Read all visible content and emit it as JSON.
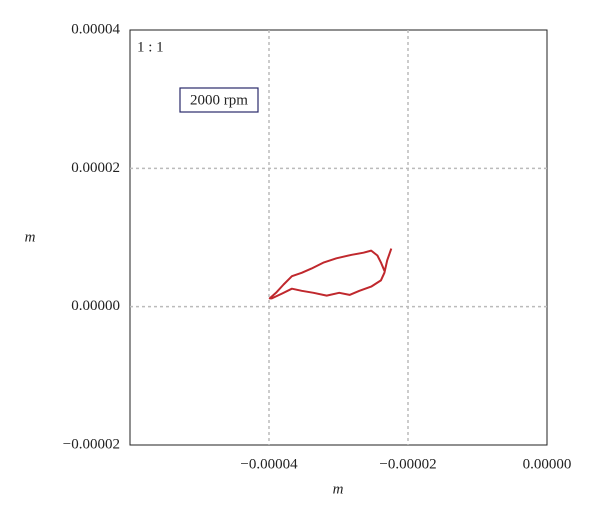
{
  "chart_data": {
    "type": "line",
    "annotations": [
      "1 : 1",
      "2000 rpm"
    ],
    "xlabel": "m",
    "ylabel": "m",
    "xlim": [
      -6e-05,
      0
    ],
    "ylim": [
      -2e-05,
      4e-05
    ],
    "xticks": [
      {
        "value": -4e-05,
        "label": "−0.00004"
      },
      {
        "value": -2e-05,
        "label": "−0.00002"
      },
      {
        "value": 0,
        "label": "0.00000"
      }
    ],
    "yticks": [
      {
        "value": -2e-05,
        "label": "−0.00002"
      },
      {
        "value": 0,
        "label": "0.00000"
      },
      2e-05,
      4e-05
    ],
    "grid": true,
    "series": [
      {
        "color": "#c0282d",
        "x": [
          -2.24e-05,
          -2.3e-05,
          -2.34e-05,
          -2.39e-05,
          -2.53e-05,
          -2.7e-05,
          -2.84e-05,
          -2.99e-05,
          -3.17e-05,
          -3.36e-05,
          -3.53e-05,
          -3.67e-05,
          -3.81e-05,
          -3.96e-05,
          -3.99e-05,
          -3.9e-05,
          -3.79e-05,
          -3.67e-05,
          -3.53e-05,
          -3.39e-05,
          -3.21e-05,
          -3.03e-05,
          -2.81e-05,
          -2.64e-05,
          -2.53e-05,
          -2.44e-05,
          -2.39e-05,
          -2.34e-05
        ],
        "values": [
          8.4e-06,
          6.7e-06,
          4.9e-06,
          3.8e-06,
          2.9e-06,
          2.3e-06,
          1.7e-06,
          2e-06,
          1.6e-06,
          2e-06,
          2.3e-06,
          2.6e-06,
          1.9e-06,
          1.2e-06,
          1.2e-06,
          2e-06,
          3.2e-06,
          4.4e-06,
          4.9e-06,
          5.5e-06,
          6.4e-06,
          7e-06,
          7.5e-06,
          7.8e-06,
          8.1e-06,
          7.4e-06,
          6.4e-06,
          5.2e-06
        ]
      }
    ]
  }
}
